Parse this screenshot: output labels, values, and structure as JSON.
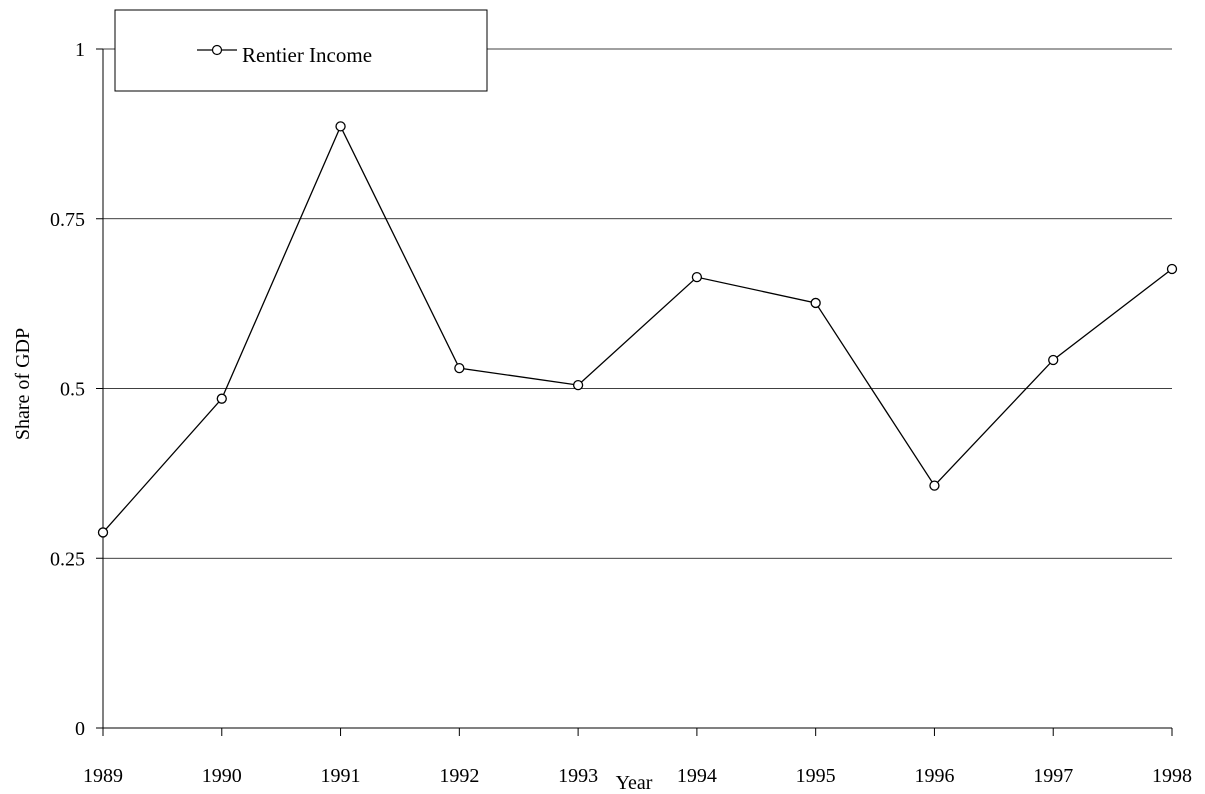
{
  "chart_data": {
    "type": "line",
    "title": "",
    "xlabel": "Year",
    "ylabel": "Share of GDP",
    "categories": [
      "1989",
      "1990",
      "1991",
      "1992",
      "1993",
      "1994",
      "1995",
      "1996",
      "1997",
      "1998"
    ],
    "series": [
      {
        "name": "Rentier Income",
        "values": [
          0.288,
          0.485,
          0.886,
          0.53,
          0.505,
          0.664,
          0.626,
          0.357,
          0.542,
          0.676
        ]
      }
    ],
    "ylim": [
      0,
      1
    ],
    "yticks": [
      "0",
      "0.25",
      "0.5",
      "0.75",
      "1"
    ],
    "grid": true,
    "legend_position": "top-left",
    "colors": {
      "line": "#000000",
      "grid": "#000000",
      "background": "#ffffff"
    }
  }
}
